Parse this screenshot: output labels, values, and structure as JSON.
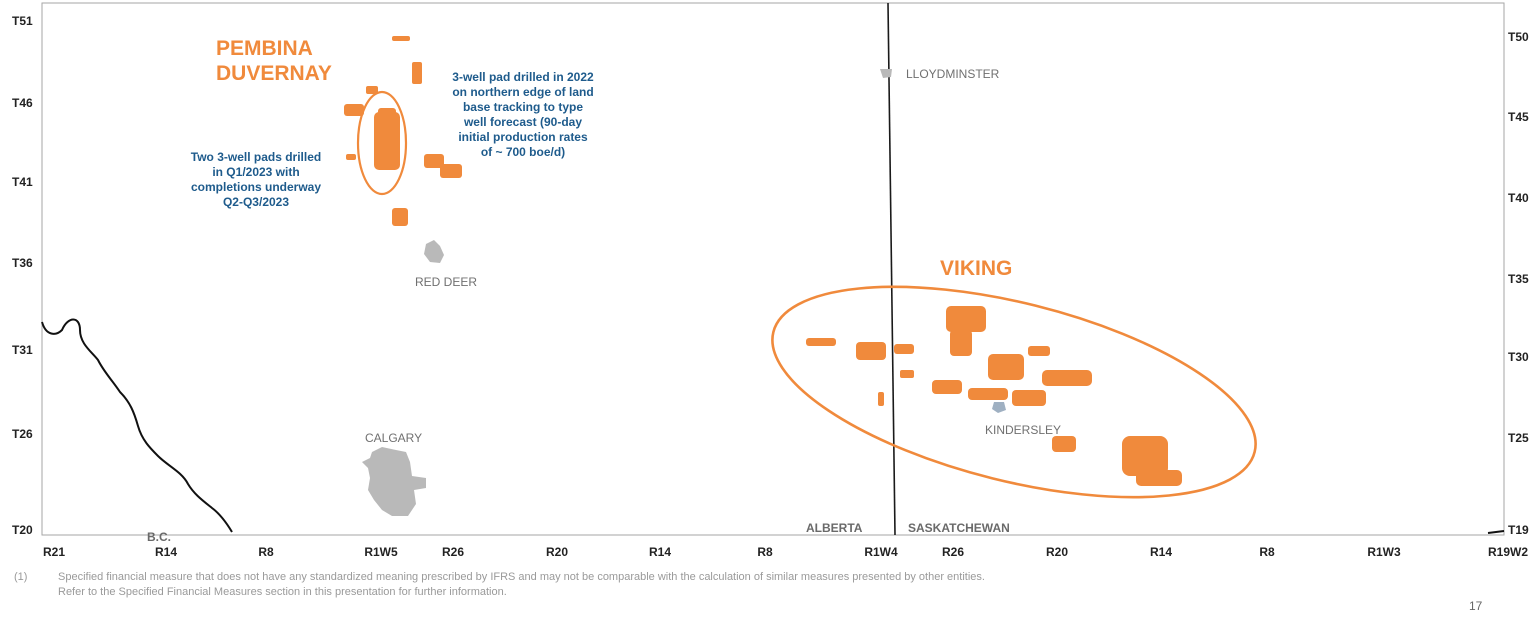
{
  "plays": {
    "pembina": [
      "PEMBINA",
      "DUVERNAY"
    ],
    "viking": "VIKING"
  },
  "annotations": {
    "pembina_2022": [
      "3-well pad drilled in 2022",
      "on northern edge of land",
      "base tracking to type",
      "well forecast (90-day",
      "initial production rates",
      "of ~ 700 boe/d)"
    ],
    "pembina_2023": [
      "Two 3-well pads drilled",
      "in Q1/2023 with",
      "completions underway",
      "Q2-Q3/2023"
    ]
  },
  "cities": {
    "lloydminster": "LLOYDMINSTER",
    "red_deer": "RED DEER",
    "calgary": "CALGARY",
    "kindersley": "KINDERSLEY"
  },
  "provinces": {
    "bc": "B.C.",
    "alberta": "ALBERTA",
    "saskatchewan": "SASKATCHEWAN"
  },
  "axes": {
    "left_townships": [
      "T51",
      "T46",
      "T41",
      "T36",
      "T31",
      "T26",
      "T20"
    ],
    "right_townships": [
      "T50",
      "T45",
      "T40",
      "T35",
      "T30",
      "T25",
      "T19"
    ],
    "ranges": [
      "R21",
      "R14",
      "R8",
      "R1W5",
      "R26",
      "R20",
      "R14",
      "R8",
      "R1W4",
      "R26",
      "R20",
      "R14",
      "R8",
      "R1W3",
      "R19W2"
    ]
  },
  "footnote": {
    "marker": "(1)",
    "line1": "Specified financial measure that does not have any standardized meaning prescribed by IFRS and may not be comparable with the calculation of similar measures presented by other entities.",
    "line2": "Refer to the Specified Financial Measures section in this presentation for further information."
  },
  "page_number": "17",
  "colors": {
    "accent": "#f08a3c",
    "annotation": "#1e5b8c",
    "city_fill": "#bdbdbd",
    "frame": "#999999"
  }
}
